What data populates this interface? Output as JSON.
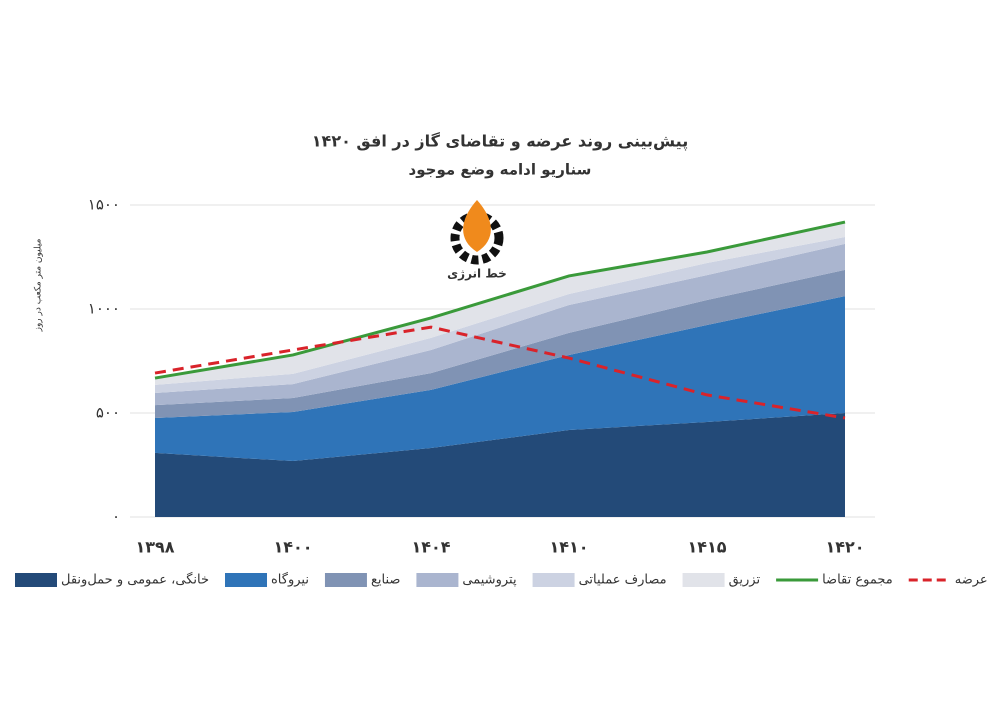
{
  "chart_data": {
    "type": "area",
    "stacked": true,
    "title": "پیش‌بینی روند عرضه و تقاضای گاز در افق ۱۴۲۰",
    "subtitle": "سناریو ادامه وضع موجود",
    "y_label": "میلیون متر مکعب در روز",
    "logo_text": "خط انرژی",
    "categories": [
      "۱۳۹۸",
      "۱۴۰۰",
      "۱۴۰۴",
      "۱۴۱۰",
      "۱۴۱۵",
      "۱۴۲۰"
    ],
    "ylim": [
      0,
      1500
    ],
    "yticks": [
      {
        "value": 0,
        "label": "۰"
      },
      {
        "value": 500,
        "label": "۵۰۰"
      },
      {
        "value": 1000,
        "label": "۱۰۰۰"
      },
      {
        "value": 1500,
        "label": "۱۵۰۰"
      }
    ],
    "grid": true,
    "legend": "bottom",
    "series": [
      {
        "name": "خانگی، عمومی و حمل‌ونقل",
        "type": "area",
        "color": "#234a78",
        "values": [
          308,
          269,
          332,
          418,
          457,
          500
        ]
      },
      {
        "name": "نیروگاه",
        "type": "area",
        "color": "#2f74b8",
        "values": [
          168,
          236,
          279,
          361,
          466,
          562
        ]
      },
      {
        "name": "صنایع",
        "type": "area",
        "color": "#8093b4",
        "values": [
          62,
          67,
          81,
          106,
          120,
          126
        ]
      },
      {
        "name": "پتروشیمی",
        "type": "area",
        "color": "#aab5cf",
        "values": [
          58,
          67,
          111,
          134,
          120,
          125
        ]
      },
      {
        "name": "مصارف عملیاتی",
        "type": "area",
        "color": "#ccd2e2",
        "values": [
          39,
          49,
          58,
          53,
          58,
          33
        ]
      },
      {
        "name": "تزریق",
        "type": "area",
        "color": "#e1e3e9",
        "values": [
          33,
          91,
          96,
          87,
          53,
          72
        ]
      },
      {
        "name": "مجموع تقاضا",
        "type": "line",
        "color": "#3a9a3a",
        "dashed": false,
        "values": [
          668,
          779,
          957,
          1159,
          1274,
          1418
        ]
      },
      {
        "name": "عرضه",
        "type": "line",
        "color": "#d9232a",
        "dashed": true,
        "values": [
          692,
          803,
          913,
          764,
          587,
          476
        ]
      }
    ]
  }
}
